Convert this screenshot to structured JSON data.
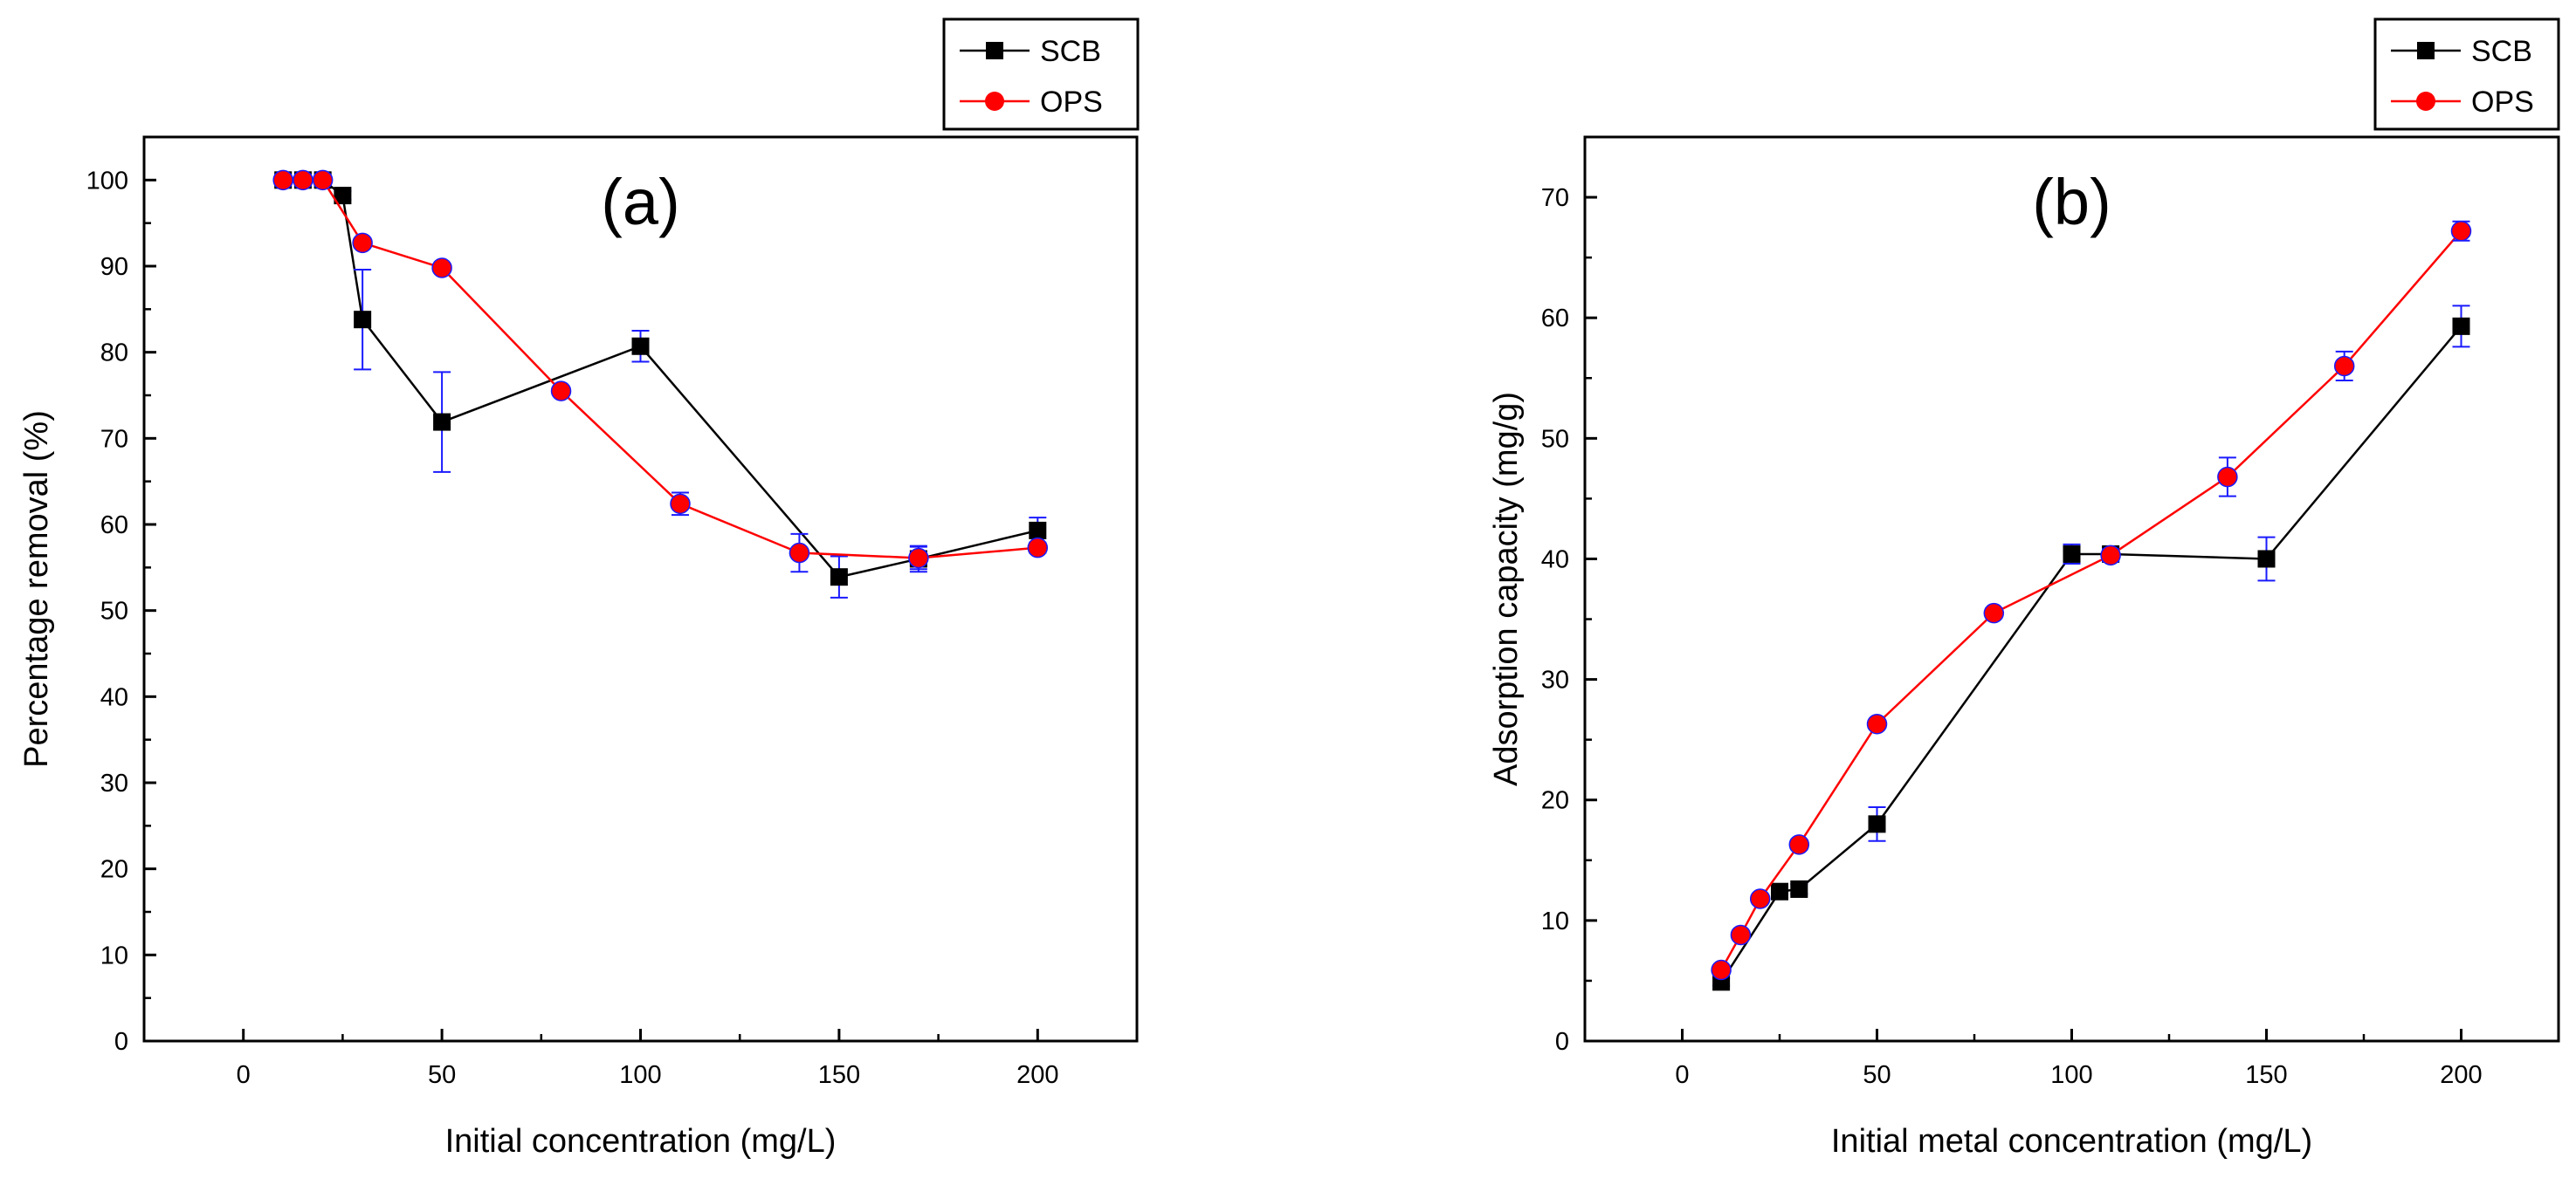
{
  "chart_data": [
    {
      "id": "a",
      "type": "line",
      "panel_label": "(a)",
      "xlabel": "Initial concentration (mg/L)",
      "ylabel": "Percentage removal (%)",
      "xlim": [
        -25,
        225
      ],
      "ylim": [
        0,
        105
      ],
      "xticks": [
        0,
        50,
        100,
        150,
        200
      ],
      "yticks": [
        0,
        10,
        20,
        30,
        40,
        50,
        60,
        70,
        80,
        90,
        100
      ],
      "legend_position": "top-right, outside plot",
      "series": [
        {
          "name": "SCB",
          "color": "#000000",
          "marker": "square",
          "x": [
            10,
            15,
            20,
            25,
            30,
            50,
            100,
            150,
            170,
            200
          ],
          "y": [
            100,
            100,
            100,
            98.2,
            83.8,
            71.9,
            80.7,
            53.9,
            56.0,
            59.3
          ],
          "err": [
            0,
            0,
            0,
            0.5,
            5.8,
            5.8,
            1.8,
            2.4,
            1.5,
            1.5
          ]
        },
        {
          "name": "OPS",
          "color": "#ff0000",
          "marker": "circle",
          "x": [
            10,
            15,
            20,
            30,
            50,
            80,
            110,
            140,
            170,
            200
          ],
          "y": [
            100,
            100,
            100,
            92.7,
            89.8,
            75.5,
            62.4,
            56.7,
            56.1,
            57.3
          ],
          "err": [
            0.3,
            0.3,
            0.3,
            0.5,
            0.5,
            0.5,
            1.3,
            2.2,
            1.3,
            0.6
          ]
        }
      ]
    },
    {
      "id": "b",
      "type": "line",
      "panel_label": "(b)",
      "xlabel": "Initial metal concentration (mg/L)",
      "ylabel": "Adsorption capacity (mg/g)",
      "xlim": [
        -25,
        225
      ],
      "ylim": [
        0,
        75
      ],
      "xticks": [
        0,
        50,
        100,
        150,
        200
      ],
      "yticks": [
        0,
        10,
        20,
        30,
        40,
        50,
        60,
        70
      ],
      "legend_position": "top-right, outside plot",
      "series": [
        {
          "name": "SCB",
          "color": "#000000",
          "marker": "square",
          "x": [
            10,
            25,
            30,
            50,
            100,
            110,
            150,
            200
          ],
          "y": [
            4.9,
            12.4,
            12.6,
            18.0,
            40.4,
            40.4,
            40.0,
            59.3
          ],
          "err": [
            0.3,
            0.4,
            0.4,
            1.4,
            0.8,
            0.6,
            1.8,
            1.7
          ]
        },
        {
          "name": "OPS",
          "color": "#ff0000",
          "marker": "circle",
          "x": [
            10,
            15,
            20,
            30,
            50,
            80,
            110,
            140,
            170,
            200
          ],
          "y": [
            5.9,
            8.8,
            11.8,
            16.3,
            26.3,
            35.5,
            40.3,
            46.8,
            56.0,
            67.2
          ],
          "err": [
            0.3,
            0.3,
            0.3,
            0.4,
            0.3,
            0.4,
            0.5,
            1.6,
            1.2,
            0.8
          ]
        }
      ]
    }
  ],
  "colors": {
    "error_bar": "#1a1aff"
  }
}
